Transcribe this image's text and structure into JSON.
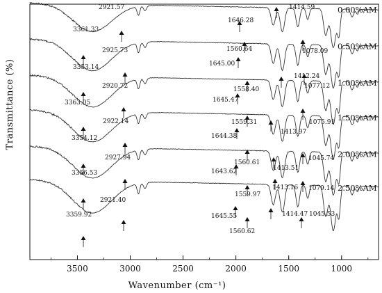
{
  "chart_data": {
    "type": "line",
    "xlabel": "Wavenumber (cm⁻¹)",
    "ylabel": "Transmittance (%)",
    "xlim": [
      3950,
      650
    ],
    "x_reversed": true,
    "grid": false,
    "legend": "series labels at right end of each curve",
    "xticks": [
      {
        "value": 3500,
        "label": "3500"
      },
      {
        "value": 3000,
        "label": "3000"
      },
      {
        "value": 2500,
        "label": "2500"
      },
      {
        "value": 2000,
        "label": "2000"
      },
      {
        "value": 1500,
        "label": "1500"
      },
      {
        "value": 1000,
        "label": "1000"
      }
    ],
    "series": [
      {
        "name": "0.00%AM",
        "peaks": [
          {
            "wavenumber": 3361.33,
            "label": "3361.33"
          },
          {
            "wavenumber": 2921.57,
            "label": "2921.57"
          },
          {
            "wavenumber": 1646.28,
            "label": "1646.28"
          },
          {
            "wavenumber": 1560.64,
            "label": "1560.64"
          },
          {
            "wavenumber": 1414.59,
            "label": "1414.59"
          },
          {
            "wavenumber": 1078.09,
            "label": "1078.09"
          }
        ]
      },
      {
        "name": "0.50%AM",
        "peaks": [
          {
            "wavenumber": 3353.14,
            "label": "3353.14"
          },
          {
            "wavenumber": 2925.73,
            "label": "2925.73"
          },
          {
            "wavenumber": 1645.0,
            "label": "1645.00"
          },
          {
            "wavenumber": 1558.4,
            "label": "1558.40"
          },
          {
            "wavenumber": 1412.24,
            "label": "1412.24"
          },
          {
            "wavenumber": 1077.12,
            "label": "1077.12"
          }
        ]
      },
      {
        "name": "1.00%AM",
        "peaks": [
          {
            "wavenumber": 3363.05,
            "label": "3363.05"
          },
          {
            "wavenumber": 2920.72,
            "label": "2920.72"
          },
          {
            "wavenumber": 1645.47,
            "label": "1645.47"
          },
          {
            "wavenumber": 1559.31,
            "label": "1559.31"
          },
          {
            "wavenumber": 1413.97,
            "label": "1413.97"
          },
          {
            "wavenumber": 1075.91,
            "label": "1075.91"
          }
        ]
      },
      {
        "name": "1.50%AM",
        "peaks": [
          {
            "wavenumber": 3354.12,
            "label": "3354.12"
          },
          {
            "wavenumber": 2922.14,
            "label": "2922.14"
          },
          {
            "wavenumber": 1644.38,
            "label": "1644.38"
          },
          {
            "wavenumber": 1560.61,
            "label": "1560.61"
          },
          {
            "wavenumber": 1413.51,
            "label": "1413.51"
          },
          {
            "wavenumber": 1045.74,
            "label": "1045.74"
          }
        ]
      },
      {
        "name": "2.00%AM",
        "peaks": [
          {
            "wavenumber": 3356.53,
            "label": "3356.53"
          },
          {
            "wavenumber": 2927.94,
            "label": "2927.94"
          },
          {
            "wavenumber": 1643.62,
            "label": "1643.62"
          },
          {
            "wavenumber": 1559.97,
            "label": "1559.97"
          },
          {
            "wavenumber": 1413.16,
            "label": "1413.16"
          },
          {
            "wavenumber": 1079.14,
            "label": "1079.14"
          }
        ]
      },
      {
        "name": "2.50%AM",
        "peaks": [
          {
            "wavenumber": 3359.92,
            "label": "3359.92"
          },
          {
            "wavenumber": 2921.4,
            "label": "2921.40"
          },
          {
            "wavenumber": 1645.55,
            "label": "1645.55"
          },
          {
            "wavenumber": 1560.62,
            "label": "1560.62"
          },
          {
            "wavenumber": 1414.47,
            "label": "1414.47"
          },
          {
            "wavenumber": 1045.53,
            "label": "1045.53"
          }
        ]
      }
    ]
  }
}
